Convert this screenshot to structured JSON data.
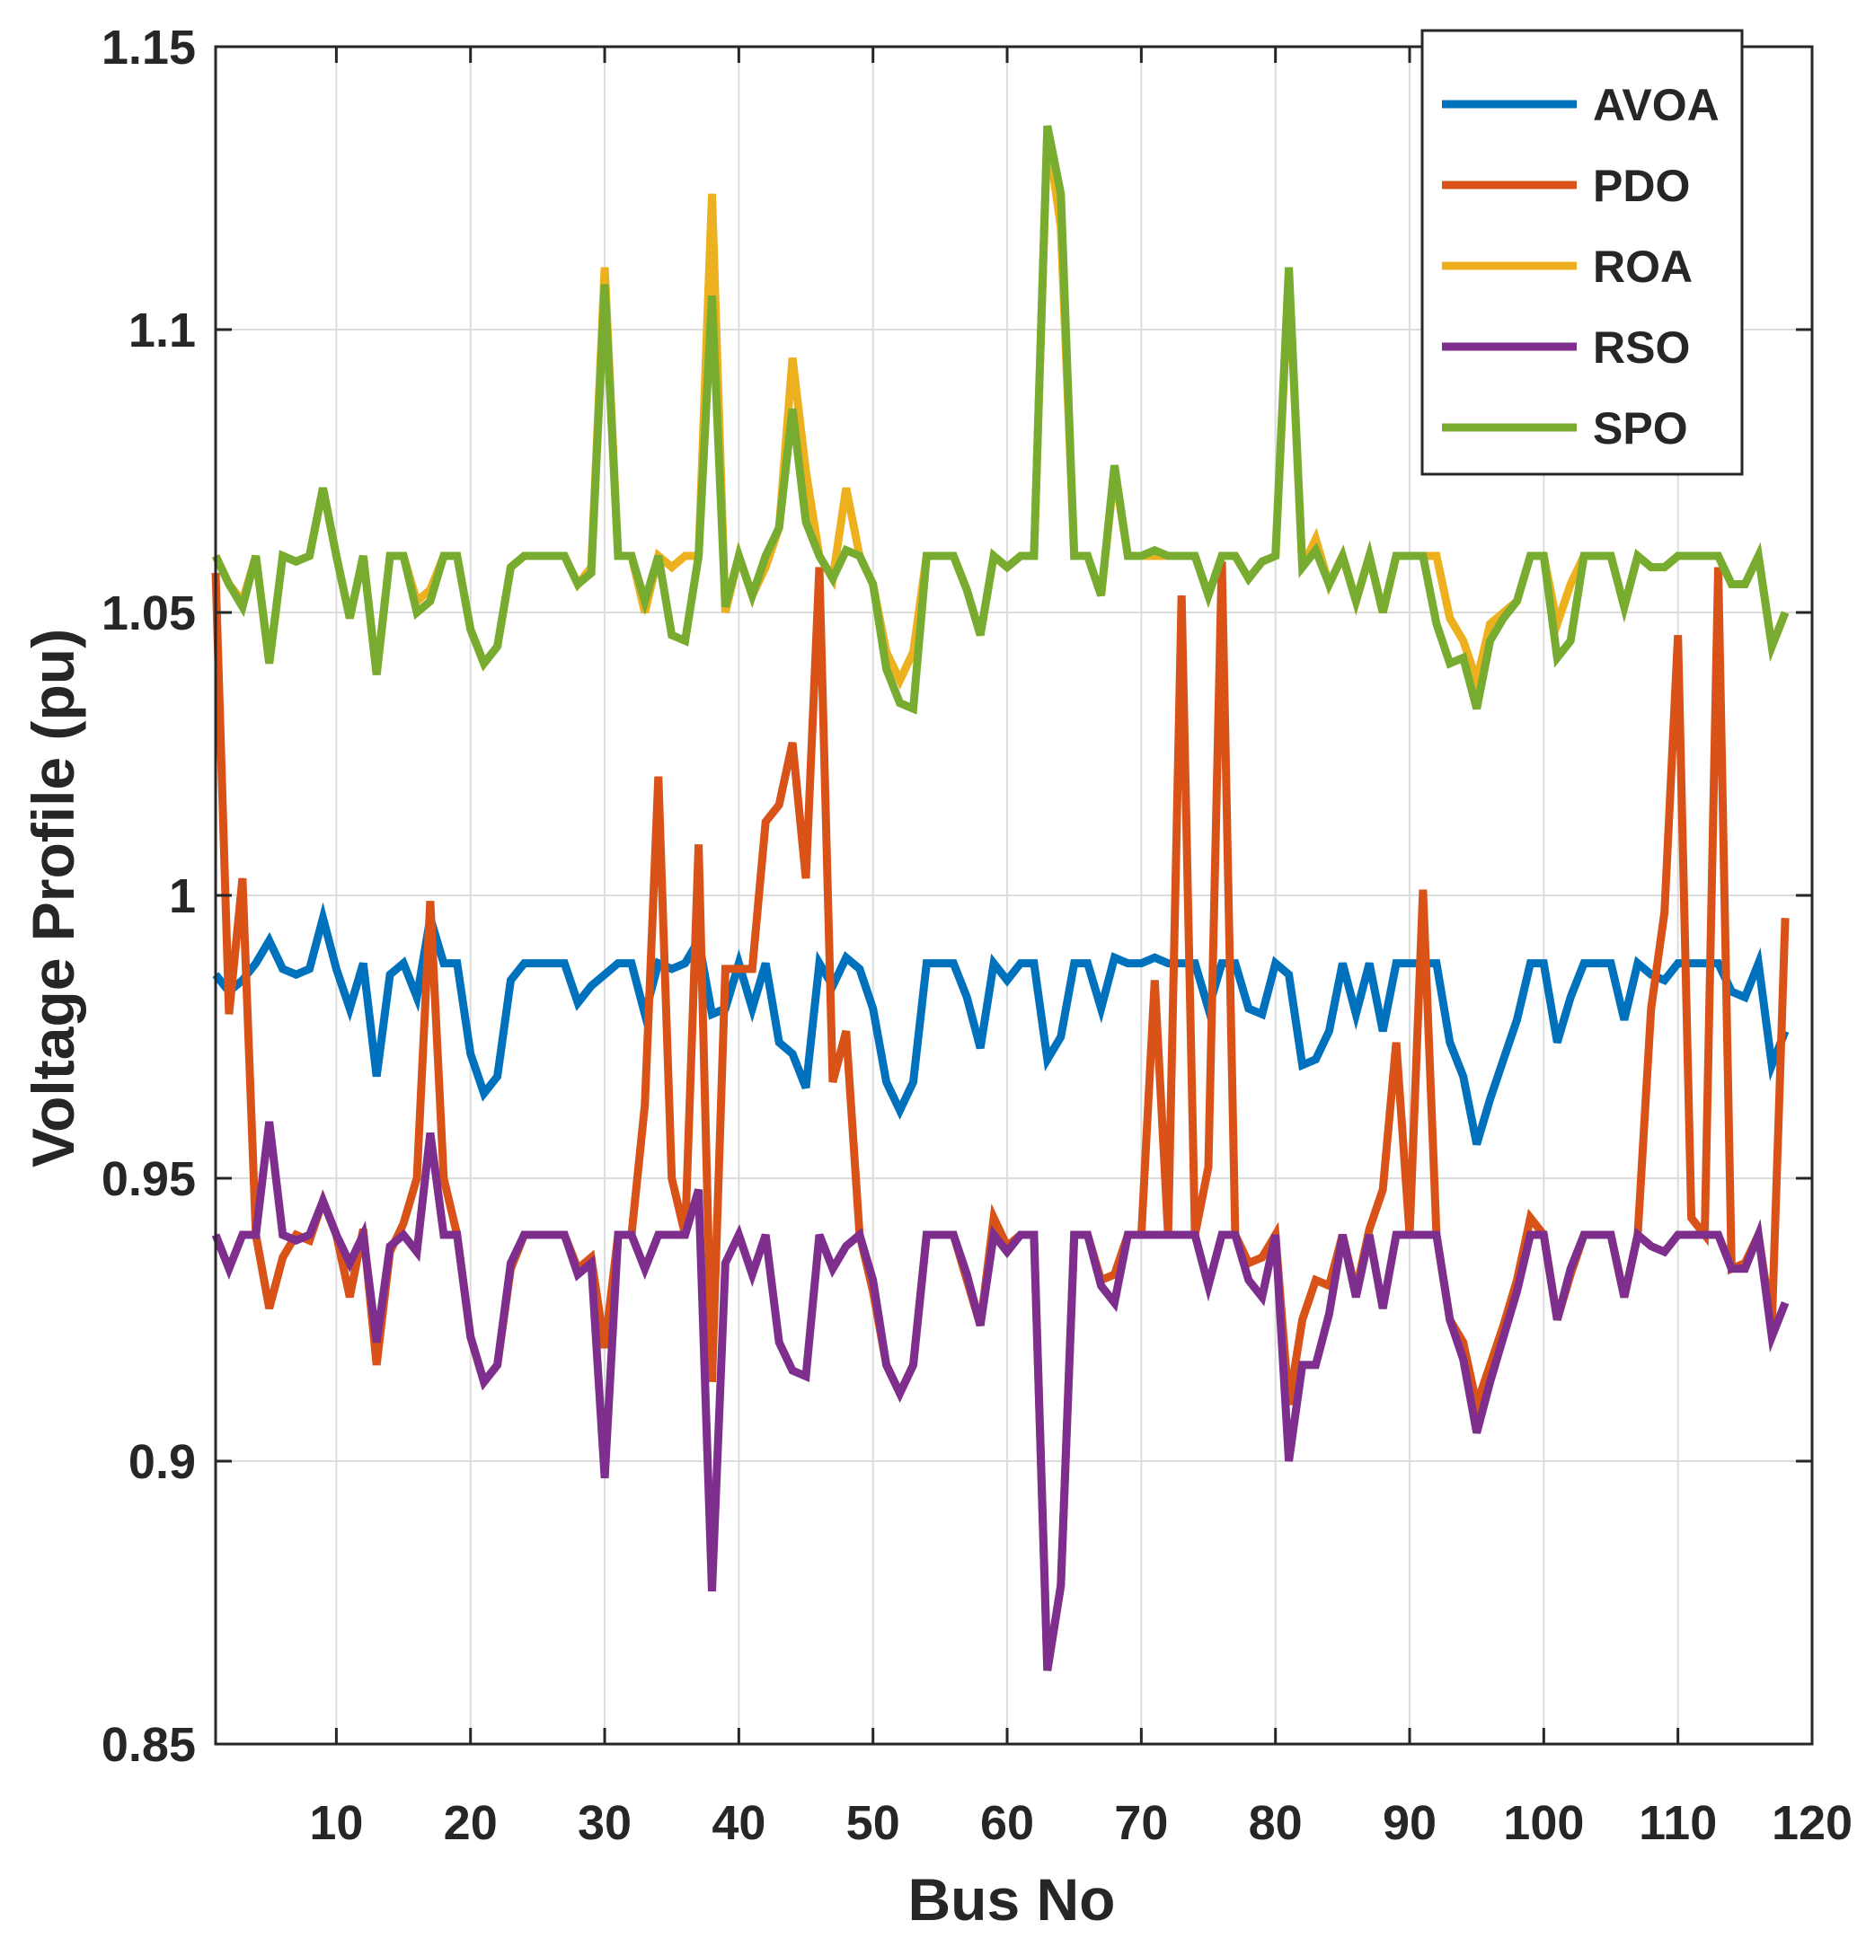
{
  "chart_data": {
    "type": "line",
    "title": "",
    "xlabel": "Bus No",
    "ylabel": "Voltage Profile (pu)",
    "xlim": [
      1,
      120
    ],
    "ylim": [
      0.85,
      1.15
    ],
    "xticks": [
      10,
      20,
      30,
      40,
      50,
      60,
      70,
      80,
      90,
      100,
      110,
      120
    ],
    "yticks": [
      0.85,
      0.9,
      0.95,
      1,
      1.05,
      1.1,
      1.15
    ],
    "xtick_labels": [
      "10",
      "20",
      "30",
      "40",
      "50",
      "60",
      "70",
      "80",
      "90",
      "100",
      "110",
      "120"
    ],
    "ytick_labels": [
      "0.85",
      "0.9",
      "0.95",
      "1",
      "1.05",
      "1.1",
      "1.15"
    ],
    "grid": true,
    "legend_position": "top-right",
    "x": [
      1,
      2,
      3,
      4,
      5,
      6,
      7,
      8,
      9,
      10,
      11,
      12,
      13,
      14,
      15,
      16,
      17,
      18,
      19,
      20,
      21,
      22,
      23,
      24,
      25,
      26,
      27,
      28,
      29,
      30,
      31,
      32,
      33,
      34,
      35,
      36,
      37,
      38,
      39,
      40,
      41,
      42,
      43,
      44,
      45,
      46,
      47,
      48,
      49,
      50,
      51,
      52,
      53,
      54,
      55,
      56,
      57,
      58,
      59,
      60,
      61,
      62,
      63,
      64,
      65,
      66,
      67,
      68,
      69,
      70,
      71,
      72,
      73,
      74,
      75,
      76,
      77,
      78,
      79,
      80,
      81,
      82,
      83,
      84,
      85,
      86,
      87,
      88,
      89,
      90,
      91,
      92,
      93,
      94,
      95,
      96,
      97,
      98,
      99,
      100,
      101,
      102,
      103,
      104,
      105,
      106,
      107,
      108,
      109,
      110,
      111,
      112,
      113,
      114,
      115,
      116,
      117,
      118
    ],
    "series": [
      {
        "name": "AVOA",
        "color": "#0072BD",
        "values": [
          0.986,
          0.983,
          0.985,
          0.988,
          0.992,
          0.987,
          0.986,
          0.987,
          0.996,
          0.987,
          0.98,
          0.988,
          0.968,
          0.986,
          0.988,
          0.982,
          0.996,
          0.988,
          0.988,
          0.972,
          0.965,
          0.968,
          0.985,
          0.988,
          0.988,
          0.988,
          0.988,
          0.981,
          0.984,
          0.986,
          0.988,
          0.988,
          0.979,
          0.988,
          0.987,
          0.988,
          0.992,
          0.979,
          0.98,
          0.988,
          0.98,
          0.988,
          0.974,
          0.972,
          0.966,
          0.988,
          0.984,
          0.989,
          0.987,
          0.98,
          0.967,
          0.962,
          0.967,
          0.988,
          0.988,
          0.988,
          0.982,
          0.973,
          0.988,
          0.985,
          0.988,
          0.988,
          0.971,
          0.975,
          0.988,
          0.988,
          0.98,
          0.989,
          0.988,
          0.988,
          0.989,
          0.988,
          0.988,
          0.988,
          0.98,
          0.988,
          0.988,
          0.98,
          0.979,
          0.988,
          0.986,
          0.97,
          0.971,
          0.976,
          0.988,
          0.979,
          0.988,
          0.976,
          0.988,
          0.988,
          0.988,
          0.988,
          0.974,
          0.968,
          0.956,
          0.964,
          0.971,
          0.978,
          0.988,
          0.988,
          0.974,
          0.982,
          0.988,
          0.988,
          0.988,
          0.978,
          0.988,
          0.986,
          0.985,
          0.988,
          0.988,
          0.988,
          0.988,
          0.983,
          0.982,
          0.988,
          0.97,
          0.976
        ]
      },
      {
        "name": "PDO",
        "color": "#D95319",
        "values": [
          1.057,
          0.979,
          1.003,
          0.94,
          0.927,
          0.936,
          0.94,
          0.939,
          0.946,
          0.94,
          0.929,
          0.941,
          0.917,
          0.937,
          0.942,
          0.95,
          0.999,
          0.95,
          0.94,
          0.922,
          0.914,
          0.917,
          0.934,
          0.94,
          0.94,
          0.94,
          0.94,
          0.934,
          0.936,
          0.92,
          0.94,
          0.94,
          0.963,
          1.021,
          0.95,
          0.94,
          1.009,
          0.914,
          0.987,
          0.987,
          0.987,
          1.013,
          1.016,
          1.027,
          1.003,
          1.058,
          0.967,
          0.976,
          0.94,
          0.93,
          0.917,
          0.912,
          0.917,
          0.94,
          0.94,
          0.94,
          0.932,
          0.924,
          0.943,
          0.938,
          0.94,
          0.94,
          0.863,
          0.878,
          0.94,
          0.94,
          0.932,
          0.933,
          0.94,
          0.94,
          0.985,
          0.94,
          1.053,
          0.94,
          0.952,
          1.059,
          0.94,
          0.935,
          0.936,
          0.94,
          0.91,
          0.925,
          0.932,
          0.931,
          0.94,
          0.93,
          0.941,
          0.948,
          0.974,
          0.94,
          1.001,
          0.94,
          0.925,
          0.921,
          0.91,
          0.917,
          0.924,
          0.932,
          0.943,
          0.94,
          0.925,
          0.933,
          0.94,
          0.94,
          0.94,
          0.929,
          0.94,
          0.98,
          0.997,
          1.046,
          0.943,
          0.94,
          1.058,
          0.934,
          0.935,
          0.94,
          0.924,
          0.996
        ]
      },
      {
        "name": "ROA",
        "color": "#EDB120",
        "values": [
          1.06,
          1.055,
          1.052,
          1.06,
          1.041,
          1.06,
          1.059,
          1.06,
          1.072,
          1.06,
          1.049,
          1.06,
          1.039,
          1.06,
          1.06,
          1.052,
          1.054,
          1.06,
          1.06,
          1.047,
          1.041,
          1.044,
          1.058,
          1.06,
          1.06,
          1.06,
          1.06,
          1.055,
          1.058,
          1.111,
          1.06,
          1.06,
          1.05,
          1.06,
          1.058,
          1.06,
          1.06,
          1.124,
          1.05,
          1.06,
          1.053,
          1.058,
          1.065,
          1.095,
          1.075,
          1.06,
          1.056,
          1.072,
          1.06,
          1.055,
          1.043,
          1.038,
          1.043,
          1.06,
          1.06,
          1.06,
          1.054,
          1.046,
          1.06,
          1.058,
          1.06,
          1.06,
          1.135,
          1.118,
          1.06,
          1.06,
          1.053,
          1.075,
          1.06,
          1.06,
          1.06,
          1.06,
          1.06,
          1.06,
          1.053,
          1.06,
          1.06,
          1.056,
          1.059,
          1.06,
          1.11,
          1.058,
          1.063,
          1.055,
          1.06,
          1.052,
          1.06,
          1.05,
          1.06,
          1.06,
          1.06,
          1.06,
          1.049,
          1.045,
          1.038,
          1.048,
          1.05,
          1.052,
          1.06,
          1.06,
          1.048,
          1.055,
          1.06,
          1.06,
          1.06,
          1.051,
          1.06,
          1.058,
          1.058,
          1.06,
          1.06,
          1.06,
          1.06,
          1.055,
          1.055,
          1.06,
          1.044,
          1.05
        ]
      },
      {
        "name": "RSO",
        "color": "#7E2F8E",
        "values": [
          0.94,
          0.934,
          0.94,
          0.94,
          0.96,
          0.94,
          0.939,
          0.94,
          0.946,
          0.94,
          0.935,
          0.94,
          0.921,
          0.938,
          0.94,
          0.937,
          0.958,
          0.94,
          0.94,
          0.922,
          0.914,
          0.917,
          0.935,
          0.94,
          0.94,
          0.94,
          0.94,
          0.933,
          0.935,
          0.897,
          0.94,
          0.94,
          0.934,
          0.94,
          0.94,
          0.94,
          0.948,
          0.877,
          0.935,
          0.94,
          0.933,
          0.94,
          0.921,
          0.916,
          0.915,
          0.94,
          0.934,
          0.938,
          0.94,
          0.932,
          0.917,
          0.912,
          0.917,
          0.94,
          0.94,
          0.94,
          0.933,
          0.924,
          0.94,
          0.937,
          0.94,
          0.94,
          0.863,
          0.878,
          0.94,
          0.94,
          0.931,
          0.928,
          0.94,
          0.94,
          0.94,
          0.94,
          0.94,
          0.94,
          0.931,
          0.94,
          0.94,
          0.932,
          0.929,
          0.94,
          0.9,
          0.917,
          0.917,
          0.926,
          0.94,
          0.929,
          0.94,
          0.927,
          0.94,
          0.94,
          0.94,
          0.94,
          0.925,
          0.918,
          0.905,
          0.914,
          0.922,
          0.93,
          0.94,
          0.94,
          0.925,
          0.934,
          0.94,
          0.94,
          0.94,
          0.929,
          0.94,
          0.938,
          0.937,
          0.94,
          0.94,
          0.94,
          0.94,
          0.934,
          0.934,
          0.94,
          0.922,
          0.928
        ]
      },
      {
        "name": "SPO",
        "color": "#77AC30",
        "values": [
          1.06,
          1.055,
          1.051,
          1.06,
          1.041,
          1.06,
          1.059,
          1.06,
          1.072,
          1.06,
          1.049,
          1.06,
          1.039,
          1.06,
          1.06,
          1.05,
          1.052,
          1.06,
          1.06,
          1.047,
          1.041,
          1.044,
          1.058,
          1.06,
          1.06,
          1.06,
          1.06,
          1.055,
          1.057,
          1.108,
          1.06,
          1.06,
          1.052,
          1.06,
          1.046,
          1.045,
          1.06,
          1.106,
          1.051,
          1.06,
          1.053,
          1.06,
          1.065,
          1.086,
          1.066,
          1.06,
          1.056,
          1.061,
          1.06,
          1.055,
          1.04,
          1.034,
          1.033,
          1.06,
          1.06,
          1.06,
          1.054,
          1.046,
          1.06,
          1.058,
          1.06,
          1.06,
          1.136,
          1.124,
          1.06,
          1.06,
          1.053,
          1.076,
          1.06,
          1.06,
          1.061,
          1.06,
          1.06,
          1.06,
          1.053,
          1.06,
          1.06,
          1.056,
          1.059,
          1.06,
          1.111,
          1.058,
          1.061,
          1.055,
          1.06,
          1.052,
          1.06,
          1.05,
          1.06,
          1.06,
          1.06,
          1.048,
          1.041,
          1.042,
          1.033,
          1.045,
          1.049,
          1.052,
          1.06,
          1.06,
          1.042,
          1.045,
          1.06,
          1.06,
          1.06,
          1.051,
          1.06,
          1.058,
          1.058,
          1.06,
          1.06,
          1.06,
          1.06,
          1.055,
          1.055,
          1.06,
          1.044,
          1.05
        ]
      }
    ]
  }
}
